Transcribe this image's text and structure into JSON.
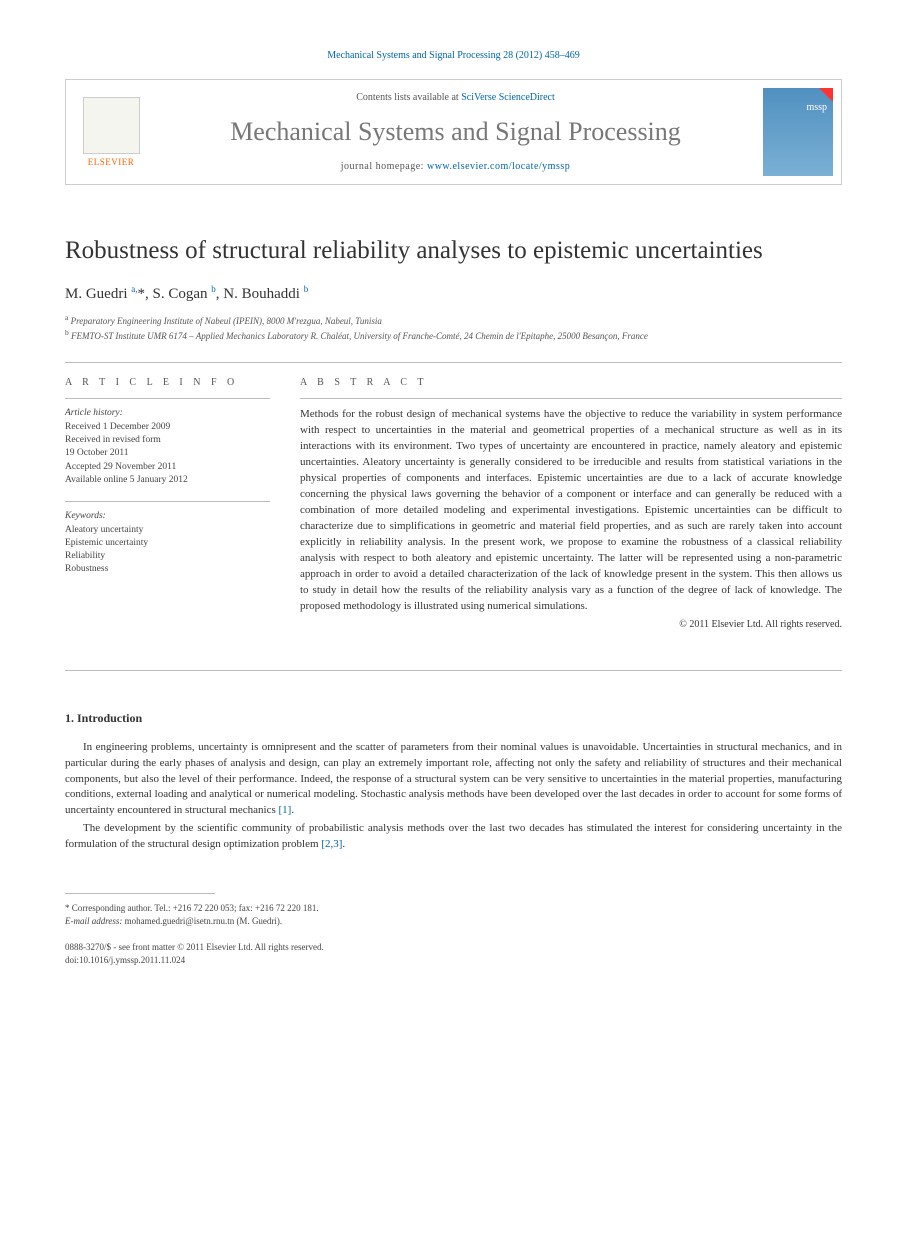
{
  "citation": "Mechanical Systems and Signal Processing 28 (2012) 458–469",
  "header": {
    "contents_prefix": "Contents lists available at ",
    "contents_link": "SciVerse ScienceDirect",
    "journal": "Mechanical Systems and Signal Processing",
    "homepage_prefix": "journal homepage: ",
    "homepage_url": "www.elsevier.com/locate/ymssp",
    "publisher": "ELSEVIER",
    "cover_label": "mssp"
  },
  "title": "Robustness of structural reliability analyses to epistemic uncertainties",
  "authors_html": "M. Guedri <sup>a,</sup>*, S. Cogan <sup>b</sup>, N. Bouhaddi <sup>b</sup>",
  "affiliations": [
    "a Preparatory Engineering Institute of Nabeul (IPEIN), 8000 M'rezgua, Nabeul, Tunisia",
    "b FEMTO-ST Institute UMR 6174 – Applied Mechanics Laboratory R. Chaléat, University of Franche-Comté, 24 Chemin de l'Epitaphe, 25000 Besançon, France"
  ],
  "info": {
    "heading": "A R T I C L E   I N F O",
    "history_label": "Article history:",
    "history": [
      "Received 1 December 2009",
      "Received in revised form",
      "19 October 2011",
      "Accepted 29 November 2011",
      "Available online 5 January 2012"
    ],
    "keywords_label": "Keywords:",
    "keywords": [
      "Aleatory uncertainty",
      "Epistemic uncertainty",
      "Reliability",
      "Robustness"
    ]
  },
  "abstract": {
    "heading": "A B S T R A C T",
    "text": "Methods for the robust design of mechanical systems have the objective to reduce the variability in system performance with respect to uncertainties in the material and geometrical properties of a mechanical structure as well as in its interactions with its environment. Two types of uncertainty are encountered in practice, namely aleatory and epistemic uncertainties. Aleatory uncertainty is generally considered to be irreducible and results from statistical variations in the physical properties of components and interfaces. Epistemic uncertainties are due to a lack of accurate knowledge concerning the physical laws governing the behavior of a component or interface and can generally be reduced with a combination of more detailed modeling and experimental investigations. Epistemic uncertainties can be difficult to characterize due to simplifications in geometric and material field properties, and as such are rarely taken into account explicitly in reliability analysis. In the present work, we propose to examine the robustness of a classical reliability analysis with respect to both aleatory and epistemic uncertainty. The latter will be represented using a non-parametric approach in order to avoid a detailed characterization of the lack of knowledge present in the system. This then allows us to study in detail how the results of the reliability analysis vary as a function of the degree of lack of knowledge. The proposed methodology is illustrated using numerical simulations.",
    "copyright": "© 2011 Elsevier Ltd. All rights reserved."
  },
  "section1": {
    "heading": "1.  Introduction",
    "para1": "In engineering problems, uncertainty is omnipresent and the scatter of parameters from their nominal values is unavoidable. Uncertainties in structural mechanics, and in particular during the early phases of analysis and design, can play an extremely important role, affecting not only the safety and reliability of structures and their mechanical components, but also the level of their performance. Indeed, the response of a structural system can be very sensitive to uncertainties in the material properties, manufacturing conditions, external loading and analytical or numerical modeling. Stochastic analysis methods have been developed over the last decades in order to account for some forms of uncertainty encountered in structural mechanics ",
    "ref1": "[1]",
    "para1_end": ".",
    "para2": "The development by the scientific community of probabilistic analysis methods over the last two decades has stimulated the interest for considering uncertainty in the formulation of the structural design optimization problem ",
    "ref2": "[2,3]",
    "para2_end": "."
  },
  "footnote": {
    "corr": "* Corresponding author. Tel.: +216 72 220 053; fax: +216 72 220 181.",
    "email_label": "E-mail address:",
    "email": " mohamed.guedri@isetn.rnu.tn (M. Guedri)."
  },
  "doi": {
    "line1": "0888-3270/$ - see front matter © 2011 Elsevier Ltd. All rights reserved.",
    "line2": "doi:10.1016/j.ymssp.2011.11.024"
  },
  "colors": {
    "link": "#0066aa",
    "publisher": "#ff6600",
    "journal_gray": "#777777"
  }
}
